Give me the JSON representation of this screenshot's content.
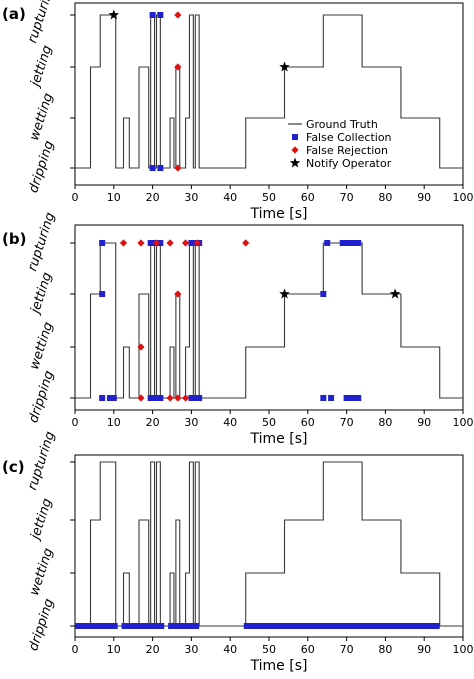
{
  "colors": {
    "ground_truth": "#3a3a3a",
    "false_collection": "#2222cc",
    "false_rejection": "#dd1111",
    "notify_operator": "#000000"
  },
  "chart_data": [
    {
      "panel": "(a)",
      "type": "line",
      "xlabel": "Time [s]",
      "xlim": [
        0,
        100
      ],
      "xticks": [
        "0",
        "10",
        "20",
        "30",
        "40",
        "50",
        "60",
        "70",
        "80",
        "90",
        "100"
      ],
      "yticks": [
        "dripping",
        "wetting",
        "jetting",
        "rupturing"
      ],
      "legend": {
        "placement": "lower-center",
        "entries": [
          "Ground Truth",
          "False Collection",
          "False Rejection",
          "Notify Operator"
        ]
      },
      "series": [
        {
          "name": "Ground Truth",
          "kind": "step",
          "points": [
            [
              0,
              0
            ],
            [
              4,
              0
            ],
            [
              4,
              2
            ],
            [
              6.5,
              2
            ],
            [
              6.5,
              3
            ],
            [
              10.5,
              3
            ],
            [
              10.5,
              0
            ],
            [
              12.5,
              0
            ],
            [
              12.5,
              1
            ],
            [
              14,
              1
            ],
            [
              14,
              0
            ],
            [
              16.5,
              0
            ],
            [
              16.5,
              2
            ],
            [
              19,
              2
            ],
            [
              19,
              0
            ],
            [
              19.5,
              0
            ],
            [
              19.5,
              3
            ],
            [
              20.5,
              3
            ],
            [
              20.5,
              0
            ],
            [
              21,
              0
            ],
            [
              21,
              3
            ],
            [
              22,
              3
            ],
            [
              22,
              0
            ],
            [
              24.5,
              0
            ],
            [
              24.5,
              1
            ],
            [
              25.5,
              1
            ],
            [
              25.5,
              0
            ],
            [
              26,
              0
            ],
            [
              26,
              2
            ],
            [
              27,
              2
            ],
            [
              27,
              0
            ],
            [
              28.5,
              0
            ],
            [
              28.5,
              1
            ],
            [
              29.5,
              1
            ],
            [
              29.5,
              3
            ],
            [
              30.5,
              3
            ],
            [
              30.5,
              0
            ],
            [
              31,
              0
            ],
            [
              31,
              3
            ],
            [
              32,
              3
            ],
            [
              32,
              0
            ],
            [
              44,
              0
            ],
            [
              44,
              1
            ],
            [
              54,
              1
            ],
            [
              54,
              2
            ],
            [
              64,
              2
            ],
            [
              64,
              3
            ],
            [
              74,
              3
            ],
            [
              74,
              2
            ],
            [
              84,
              2
            ],
            [
              84,
              1
            ],
            [
              94,
              1
            ],
            [
              94,
              0
            ],
            [
              100,
              0
            ]
          ]
        },
        {
          "name": "False Collection",
          "kind": "marker",
          "points": [
            [
              20,
              3
            ],
            [
              22,
              3
            ],
            [
              20,
              0
            ],
            [
              22,
              0
            ]
          ]
        },
        {
          "name": "False Rejection",
          "kind": "marker",
          "points": [
            [
              26.5,
              3
            ],
            [
              26.5,
              2
            ],
            [
              26.5,
              0
            ]
          ]
        },
        {
          "name": "Notify Operator",
          "kind": "marker",
          "points": [
            [
              10,
              3
            ],
            [
              54,
              2
            ]
          ]
        }
      ]
    },
    {
      "panel": "(b)",
      "type": "line",
      "xlabel": "Time [s]",
      "xlim": [
        0,
        100
      ],
      "xticks": [
        "0",
        "10",
        "20",
        "30",
        "40",
        "50",
        "60",
        "70",
        "80",
        "90",
        "100"
      ],
      "yticks": [
        "dripping",
        "wetting",
        "jetting",
        "rupturing"
      ],
      "series": [
        {
          "name": "Ground Truth",
          "kind": "step",
          "points": [
            [
              0,
              0
            ],
            [
              4,
              0
            ],
            [
              4,
              2
            ],
            [
              6.5,
              2
            ],
            [
              6.5,
              3
            ],
            [
              10.5,
              3
            ],
            [
              10.5,
              0
            ],
            [
              12.5,
              0
            ],
            [
              12.5,
              1
            ],
            [
              14,
              1
            ],
            [
              14,
              0
            ],
            [
              16.5,
              0
            ],
            [
              16.5,
              2
            ],
            [
              19,
              2
            ],
            [
              19,
              0
            ],
            [
              19.5,
              0
            ],
            [
              19.5,
              3
            ],
            [
              20.5,
              3
            ],
            [
              20.5,
              0
            ],
            [
              21,
              0
            ],
            [
              21,
              3
            ],
            [
              22,
              3
            ],
            [
              22,
              0
            ],
            [
              24.5,
              0
            ],
            [
              24.5,
              1
            ],
            [
              25.5,
              1
            ],
            [
              25.5,
              0
            ],
            [
              26,
              0
            ],
            [
              26,
              2
            ],
            [
              27,
              2
            ],
            [
              27,
              0
            ],
            [
              28.5,
              0
            ],
            [
              28.5,
              1
            ],
            [
              29.5,
              1
            ],
            [
              29.5,
              3
            ],
            [
              30.5,
              3
            ],
            [
              30.5,
              0
            ],
            [
              31,
              0
            ],
            [
              31,
              3
            ],
            [
              32,
              3
            ],
            [
              32,
              0
            ],
            [
              44,
              0
            ],
            [
              44,
              1
            ],
            [
              54,
              1
            ],
            [
              54,
              2
            ],
            [
              64,
              2
            ],
            [
              64,
              3
            ],
            [
              74,
              3
            ],
            [
              74,
              2
            ],
            [
              84,
              2
            ],
            [
              84,
              1
            ],
            [
              94,
              1
            ],
            [
              94,
              0
            ],
            [
              100,
              0
            ]
          ]
        },
        {
          "name": "False Collection",
          "kind": "marker",
          "points": [
            [
              7,
              3
            ],
            [
              7,
              2
            ],
            [
              7,
              0
            ],
            [
              9,
              0
            ],
            [
              10,
              0
            ],
            [
              19.5,
              3
            ],
            [
              20,
              3
            ],
            [
              21,
              3
            ],
            [
              22,
              3
            ],
            [
              19.5,
              0
            ],
            [
              20,
              0
            ],
            [
              21,
              0
            ],
            [
              21.5,
              0
            ],
            [
              22,
              0
            ],
            [
              30,
              3
            ],
            [
              31,
              3
            ],
            [
              32,
              3
            ],
            [
              30,
              0
            ],
            [
              31,
              0
            ],
            [
              32,
              0
            ],
            [
              64,
              2
            ],
            [
              64,
              0
            ],
            [
              65,
              3
            ],
            [
              66,
              0
            ],
            [
              69,
              3
            ],
            [
              70,
              3
            ],
            [
              71,
              3
            ],
            [
              71.5,
              3
            ],
            [
              72,
              3
            ],
            [
              73,
              3
            ],
            [
              70,
              0
            ],
            [
              71,
              0
            ],
            [
              72,
              0
            ],
            [
              73,
              0
            ]
          ]
        },
        {
          "name": "False Rejection",
          "kind": "marker",
          "points": [
            [
              12.5,
              3
            ],
            [
              17,
              3
            ],
            [
              17,
              1
            ],
            [
              17,
              0
            ],
            [
              21,
              3
            ],
            [
              24.5,
              3
            ],
            [
              24.5,
              0
            ],
            [
              26.5,
              2
            ],
            [
              26.5,
              0
            ],
            [
              28.5,
              3
            ],
            [
              28.5,
              0
            ],
            [
              31.5,
              3
            ],
            [
              44,
              3
            ]
          ]
        },
        {
          "name": "Notify Operator",
          "kind": "marker",
          "points": [
            [
              54,
              2
            ],
            [
              82.5,
              2
            ]
          ]
        }
      ]
    },
    {
      "panel": "(c)",
      "type": "line",
      "xlabel": "Time [s]",
      "xlim": [
        0,
        100
      ],
      "xticks": [
        "0",
        "10",
        "20",
        "30",
        "40",
        "50",
        "60",
        "70",
        "80",
        "90",
        "100"
      ],
      "yticks": [
        "dripping",
        "wetting",
        "jetting",
        "rupturing"
      ],
      "series": [
        {
          "name": "Ground Truth",
          "kind": "step",
          "points": [
            [
              0,
              0
            ],
            [
              4,
              0
            ],
            [
              4,
              2
            ],
            [
              6.5,
              2
            ],
            [
              6.5,
              3
            ],
            [
              10.5,
              3
            ],
            [
              10.5,
              0
            ],
            [
              12.5,
              0
            ],
            [
              12.5,
              1
            ],
            [
              14,
              1
            ],
            [
              14,
              0
            ],
            [
              16.5,
              0
            ],
            [
              16.5,
              2
            ],
            [
              19,
              2
            ],
            [
              19,
              0
            ],
            [
              19.5,
              0
            ],
            [
              19.5,
              3
            ],
            [
              20.5,
              3
            ],
            [
              20.5,
              0
            ],
            [
              21,
              0
            ],
            [
              21,
              3
            ],
            [
              22,
              3
            ],
            [
              22,
              0
            ],
            [
              24.5,
              0
            ],
            [
              24.5,
              1
            ],
            [
              25.5,
              1
            ],
            [
              25.5,
              0
            ],
            [
              26,
              0
            ],
            [
              26,
              2
            ],
            [
              27,
              2
            ],
            [
              27,
              0
            ],
            [
              28.5,
              0
            ],
            [
              28.5,
              1
            ],
            [
              29.5,
              1
            ],
            [
              29.5,
              3
            ],
            [
              30.5,
              3
            ],
            [
              30.5,
              0
            ],
            [
              31,
              0
            ],
            [
              31,
              3
            ],
            [
              32,
              3
            ],
            [
              32,
              0
            ],
            [
              44,
              0
            ],
            [
              44,
              1
            ],
            [
              54,
              1
            ],
            [
              54,
              2
            ],
            [
              64,
              2
            ],
            [
              64,
              3
            ],
            [
              74,
              3
            ],
            [
              74,
              2
            ],
            [
              84,
              2
            ],
            [
              84,
              1
            ],
            [
              94,
              1
            ],
            [
              94,
              0
            ],
            [
              100,
              0
            ]
          ]
        },
        {
          "name": "False Collection",
          "kind": "band",
          "level": 0,
          "ranges": [
            [
              0,
              11
            ],
            [
              12,
              23
            ],
            [
              24,
              32
            ],
            [
              43.5,
              94
            ]
          ]
        }
      ]
    }
  ]
}
